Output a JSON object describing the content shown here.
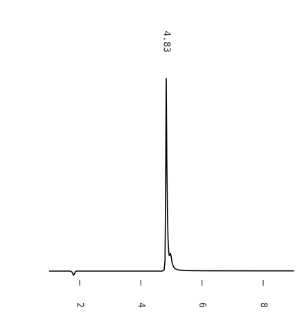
{
  "chart_data": {
    "type": "line",
    "title": "",
    "xlabel": "",
    "ylabel": "",
    "xlim": [
      1.0,
      9.0
    ],
    "ylim": [
      -0.02,
      1.0
    ],
    "grid": false,
    "x_ticks": [
      {
        "value": 2,
        "label": "2"
      },
      {
        "value": 4,
        "label": "4"
      },
      {
        "value": 6,
        "label": "6"
      },
      {
        "value": 8,
        "label": "8"
      }
    ],
    "annotations": [
      {
        "text": "4.83",
        "x": 4.83
      }
    ],
    "series": [
      {
        "color": "#000000",
        "points": [
          [
            1.0,
            0.0
          ],
          [
            1.7,
            0.0
          ],
          [
            1.75,
            -0.005
          ],
          [
            1.78,
            -0.015
          ],
          [
            1.8,
            -0.022
          ],
          [
            1.83,
            -0.015
          ],
          [
            1.86,
            -0.003
          ],
          [
            1.9,
            0.0
          ],
          [
            4.5,
            0.0
          ],
          [
            4.7,
            0.0
          ],
          [
            4.76,
            0.005
          ],
          [
            4.79,
            0.05
          ],
          [
            4.81,
            0.4
          ],
          [
            4.83,
            0.988
          ],
          [
            4.85,
            0.55
          ],
          [
            4.87,
            0.3
          ],
          [
            4.89,
            0.16
          ],
          [
            4.91,
            0.1
          ],
          [
            4.93,
            0.08
          ],
          [
            4.95,
            0.085
          ],
          [
            4.97,
            0.09
          ],
          [
            4.99,
            0.075
          ],
          [
            5.02,
            0.045
          ],
          [
            5.06,
            0.025
          ],
          [
            5.12,
            0.012
          ],
          [
            5.22,
            0.006
          ],
          [
            5.4,
            0.003
          ],
          [
            5.7,
            0.002
          ],
          [
            6.2,
            0.0015
          ],
          [
            9.0,
            0.001
          ]
        ]
      }
    ]
  }
}
